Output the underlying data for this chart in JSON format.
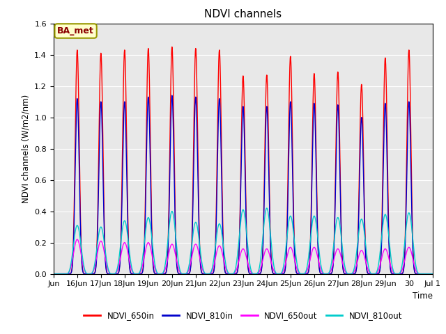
{
  "title": "NDVI channels",
  "ylabel": "NDVI channels (W/m2/nm)",
  "xlabel": "Time",
  "ylim": [
    0.0,
    1.6
  ],
  "yticks": [
    0.0,
    0.2,
    0.4,
    0.6,
    0.8,
    1.0,
    1.2,
    1.4,
    1.6
  ],
  "background_color": "#e8e8e8",
  "annotation_text": "BA_met",
  "annotation_facecolor": "#ffffcc",
  "annotation_edgecolor": "#999900",
  "annotation_textcolor": "#8B0000",
  "legend_labels": [
    "NDVI_650in",
    "NDVI_810in",
    "NDVI_650out",
    "NDVI_810out"
  ],
  "legend_colors": [
    "#ff0000",
    "#0000cc",
    "#ff00ff",
    "#00cccc"
  ],
  "start_day": 15.0,
  "end_day": 31.0,
  "num_points": 8000,
  "peaks_650in": [
    1.43,
    1.41,
    1.43,
    1.44,
    1.45,
    1.44,
    1.43,
    1.265,
    1.27,
    1.39,
    1.28,
    1.29,
    1.21,
    1.38,
    1.43
  ],
  "peaks_810in": [
    1.12,
    1.1,
    1.1,
    1.13,
    1.14,
    1.13,
    1.12,
    1.07,
    1.07,
    1.1,
    1.09,
    1.08,
    1.0,
    1.09,
    1.1
  ],
  "peaks_650out": [
    0.22,
    0.21,
    0.2,
    0.2,
    0.19,
    0.19,
    0.18,
    0.16,
    0.16,
    0.17,
    0.17,
    0.16,
    0.15,
    0.16,
    0.17
  ],
  "peaks_810out": [
    0.31,
    0.3,
    0.34,
    0.36,
    0.4,
    0.33,
    0.32,
    0.41,
    0.42,
    0.37,
    0.37,
    0.36,
    0.35,
    0.38,
    0.39
  ],
  "sharp_power_in": 14,
  "sharp_power_out": 4,
  "xtick_positions": [
    15,
    16,
    17,
    18,
    19,
    20,
    21,
    22,
    23,
    24,
    25,
    26,
    27,
    28,
    29,
    30,
    31
  ],
  "xtick_labels": [
    "Jun",
    "16Jun",
    "17Jun",
    "18Jun",
    "19Jun",
    "20Jun",
    "21Jun",
    "22Jun",
    "23Jun",
    "24Jun",
    "25Jun",
    "26Jun",
    "27Jun",
    "28Jun",
    "29Jun",
    "30",
    "Jul 1"
  ]
}
